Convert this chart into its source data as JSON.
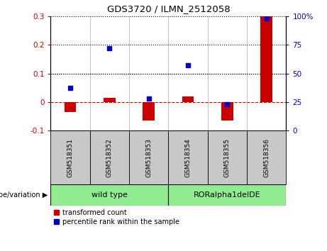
{
  "title": "GDS3720 / ILMN_2512058",
  "samples": [
    "GSM518351",
    "GSM518352",
    "GSM518353",
    "GSM518354",
    "GSM518355",
    "GSM518356"
  ],
  "red_bars": [
    -0.035,
    0.015,
    -0.065,
    0.02,
    -0.065,
    0.3
  ],
  "blue_percentile": [
    37,
    72,
    28,
    57,
    23,
    98
  ],
  "ylim_left": [
    -0.1,
    0.3
  ],
  "ylim_right": [
    0,
    100
  ],
  "yticks_left": [
    -0.1,
    0.0,
    0.1,
    0.2,
    0.3
  ],
  "yticks_right": [
    0,
    25,
    50,
    75,
    100
  ],
  "dotted_hlines": [
    0.1,
    0.2,
    0.3
  ],
  "bar_color": "#cc0000",
  "dot_color": "#0000cc",
  "zero_line_color": "#cc0000",
  "dotted_line_color": "#000000",
  "group_wt_label": "wild type",
  "group_ror_label": "RORalpha1delDE",
  "group_color": "#90ee90",
  "sample_bg": "#c8c8c8",
  "legend_red": "transformed count",
  "legend_blue": "percentile rank within the sample",
  "geno_label": "genotype/variation",
  "bar_width": 0.3
}
